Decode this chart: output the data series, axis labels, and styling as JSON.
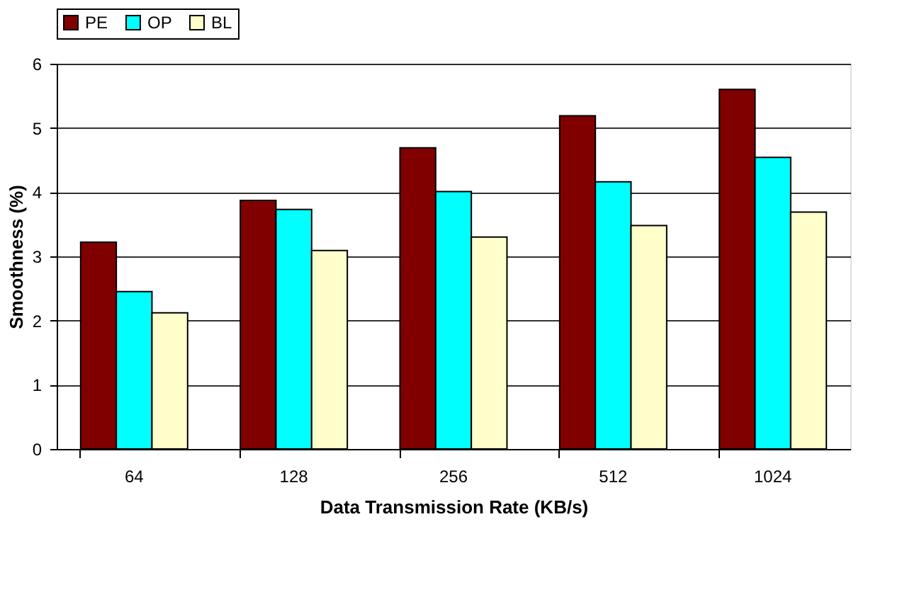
{
  "chart_data": {
    "type": "bar",
    "xlabel": "Data Transmission Rate (KB/s)",
    "ylabel": "Smoothness (%)",
    "categories": [
      "64",
      "128",
      "256",
      "512",
      "1024"
    ],
    "series": [
      {
        "name": "PE",
        "color": "#800000",
        "values": [
          3.22,
          3.87,
          4.69,
          5.19,
          5.6
        ]
      },
      {
        "name": "OP",
        "color": "#00ffff",
        "values": [
          2.45,
          3.73,
          4.01,
          4.16,
          4.54
        ]
      },
      {
        "name": "BL",
        "color": "#ffffcc",
        "values": [
          2.12,
          3.09,
          3.3,
          3.48,
          3.69
        ]
      }
    ],
    "ylim": [
      0,
      6
    ],
    "yticks": [
      0,
      1,
      2,
      3,
      4,
      5,
      6
    ],
    "grid": "y",
    "legend": "top"
  }
}
